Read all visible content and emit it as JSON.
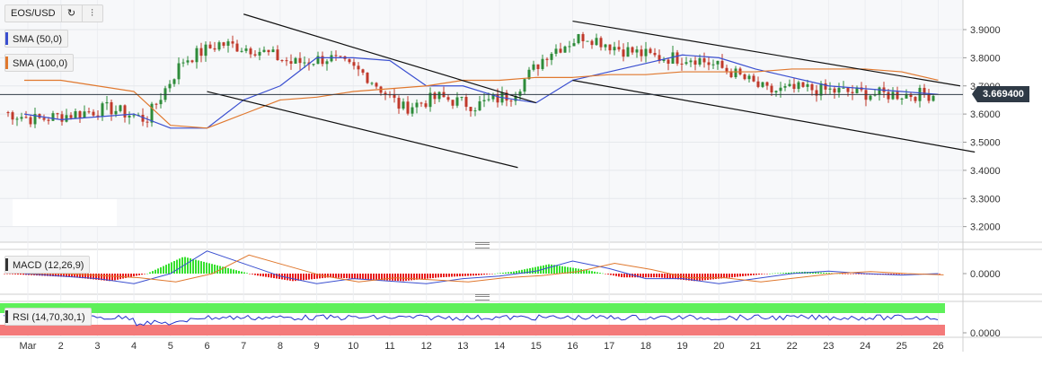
{
  "symbol": "EOS/USD",
  "toolbar": {
    "refresh_icon": "refresh-icon",
    "replay_icon": "bar-replay-icon"
  },
  "indicators": {
    "sma50": {
      "label": "SMA (50,0)",
      "color": "#3a4fd0"
    },
    "sma100": {
      "label": "SMA (100,0)",
      "color": "#e0782e"
    },
    "macd": {
      "label": "MACD (12,26,9)",
      "color": "#333333"
    },
    "rsi": {
      "label": "RSI (14,70,30,1)",
      "color": "#333333"
    }
  },
  "last_price": "3.669400",
  "colors": {
    "up": "#2e8b3a",
    "down": "#c0392b",
    "macd_up": "#36e02e",
    "macd_down": "#e81c1c",
    "rsi_high": "#5ef05a",
    "rsi_low": "#f47a7a"
  },
  "chart_data": [
    {
      "type": "candlestick",
      "title": "EOS/USD",
      "x_ticks": [
        "Mar",
        "2",
        "3",
        "4",
        "5",
        "6",
        "7",
        "8",
        "9",
        "10",
        "11",
        "12",
        "13",
        "14",
        "15",
        "16",
        "17",
        "18",
        "19",
        "20",
        "21",
        "22",
        "23",
        "24",
        "25",
        "26"
      ],
      "y_ticks": [
        "3.9000",
        "3.8000",
        "3.7000",
        "3.6000",
        "3.5000",
        "3.4000",
        "3.3000",
        "3.2000"
      ],
      "ylim": [
        3.15,
        3.98
      ],
      "last_price": 3.6694,
      "daily_close": [
        3.61,
        3.58,
        3.6,
        3.62,
        3.58,
        3.79,
        3.85,
        3.83,
        3.78,
        3.8,
        3.74,
        3.62,
        3.66,
        3.63,
        3.67,
        3.82,
        3.88,
        3.83,
        3.8,
        3.8,
        3.75,
        3.68,
        3.69,
        3.68,
        3.67,
        3.67
      ],
      "trendlines": [
        {
          "from": [
            "7",
            3.955
          ],
          "to": [
            "15",
            3.64
          ]
        },
        {
          "from": [
            "6",
            3.68
          ],
          "to": [
            "14.5",
            3.41
          ]
        },
        {
          "from": [
            "16",
            3.93
          ],
          "to": [
            "26.6",
            3.7
          ]
        },
        {
          "from": [
            "16",
            3.72
          ],
          "to": [
            "27",
            3.465
          ]
        }
      ],
      "series": [
        {
          "name": "SMA (50,0)",
          "values": [
            3.6,
            3.58,
            3.59,
            3.6,
            3.55,
            3.55,
            3.65,
            3.7,
            3.8,
            3.8,
            3.79,
            3.7,
            3.7,
            3.66,
            3.64,
            3.72,
            3.75,
            3.78,
            3.81,
            3.8,
            3.76,
            3.73,
            3.7,
            3.69,
            3.68,
            3.67
          ]
        },
        {
          "name": "SMA (100,0)",
          "values": [
            3.72,
            3.72,
            3.7,
            3.68,
            3.56,
            3.55,
            3.6,
            3.65,
            3.66,
            3.68,
            3.69,
            3.7,
            3.72,
            3.72,
            3.73,
            3.73,
            3.74,
            3.74,
            3.75,
            3.75,
            3.75,
            3.76,
            3.76,
            3.76,
            3.75,
            3.72
          ]
        }
      ]
    },
    {
      "type": "macd",
      "title": "MACD (12,26,9)",
      "y_ticks": [
        "0.0000"
      ],
      "hist": [
        0.0,
        -0.005,
        -0.01,
        -0.02,
        0.0,
        0.045,
        0.02,
        -0.005,
        -0.02,
        -0.01,
        -0.015,
        -0.02,
        -0.01,
        -0.005,
        0.005,
        0.025,
        0.01,
        -0.01,
        -0.01,
        -0.02,
        -0.01,
        0.0,
        0.005,
        0.0,
        -0.003,
        0.0
      ]
    },
    {
      "type": "rsi",
      "title": "RSI (14,70,30,1)",
      "y_ticks": [
        "0.0000"
      ]
    }
  ]
}
